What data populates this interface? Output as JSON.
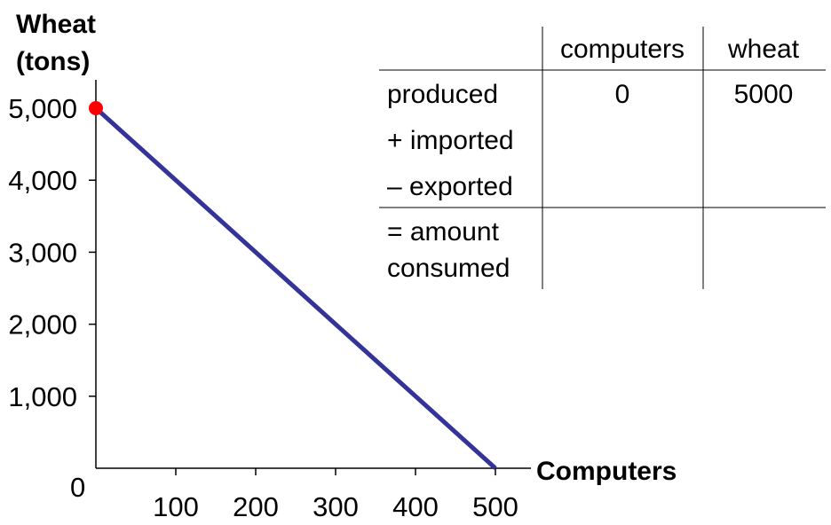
{
  "chart_data": {
    "type": "line",
    "ylabel_lines": [
      "Wheat",
      "(tons)"
    ],
    "xlabel": "Computers",
    "origin_label": "0",
    "x_ticks": [
      100,
      200,
      300,
      400,
      500
    ],
    "x_tick_labels": [
      "100",
      "200",
      "300",
      "400",
      "500"
    ],
    "y_ticks": [
      1000,
      2000,
      3000,
      4000,
      5000
    ],
    "y_tick_labels": [
      "1,000",
      "2,000",
      "3,000",
      "4,000",
      "5,000"
    ],
    "xlim": [
      0,
      500
    ],
    "ylim": [
      0,
      5000
    ],
    "series": [
      {
        "x": [
          0,
          500
        ],
        "y": [
          5000,
          0
        ]
      }
    ],
    "highlight_point": {
      "x": 0,
      "y": 5000
    },
    "colors": {
      "line": "#333399",
      "point": "#ff0000",
      "axis": "#000000"
    }
  },
  "table": {
    "headers": [
      "computers",
      "wheat"
    ],
    "rows": [
      {
        "label_lines": [
          "produced"
        ],
        "computers": "0",
        "wheat": "5000"
      },
      {
        "label_lines": [
          "+ imported"
        ],
        "computers": "",
        "wheat": ""
      },
      {
        "label_lines": [
          "– exported"
        ],
        "computers": "",
        "wheat": ""
      },
      {
        "label_lines": [
          "= amount",
          "consumed"
        ],
        "computers": "",
        "wheat": ""
      }
    ]
  }
}
